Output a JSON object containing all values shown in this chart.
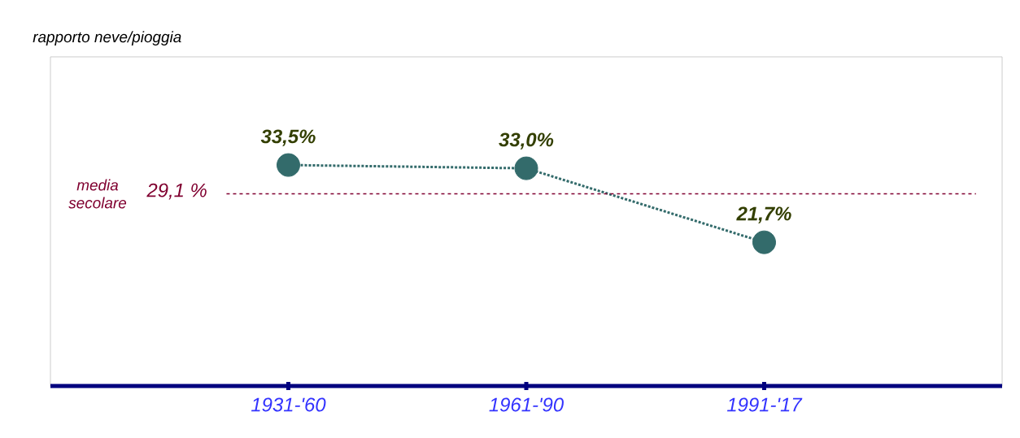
{
  "chart_data": {
    "type": "line",
    "title": "rapporto neve/pioggia",
    "categories": [
      "1931-'60",
      "1961-'90",
      "1991-'17"
    ],
    "series": [
      {
        "color": "#336b6b",
        "values": [
          33.5,
          33.0,
          21.7
        ],
        "value_labels": [
          "33,5%",
          "33,0%",
          "21,7%"
        ]
      }
    ],
    "tick_labels": "x",
    "marker": "circle",
    "line_style": "dotted",
    "ref_lines": [
      {
        "axis": "y",
        "value": 29.1,
        "label": "media secolare",
        "color": "#800030",
        "line_style": "dashed"
      }
    ],
    "annotations": [
      "29,1 %"
    ]
  }
}
